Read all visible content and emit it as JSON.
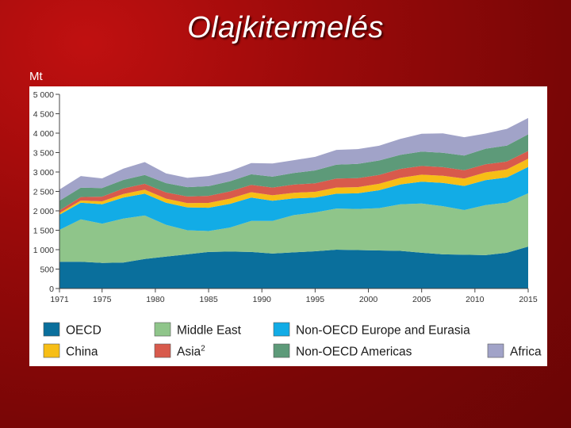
{
  "slide": {
    "title": "Olajkitermelés",
    "unit": "Mt"
  },
  "chart_data": {
    "type": "area",
    "stacked": true,
    "title": "Olajkitermelés",
    "ylabel": "Mt",
    "xlabel": "",
    "ylim": [
      0,
      5000
    ],
    "xlim": [
      1971,
      2015
    ],
    "yticks": [
      0,
      500,
      1000,
      1500,
      2000,
      2500,
      3000,
      3500,
      4000,
      4500,
      5000
    ],
    "ytick_labels": [
      "0",
      "500",
      "1 000",
      "1 500",
      "2 000",
      "2 500",
      "3 000",
      "3 500",
      "4 000",
      "4 500",
      "5 000"
    ],
    "xticks": [
      1971,
      1975,
      1980,
      1985,
      1990,
      1995,
      2000,
      2005,
      2010,
      2015
    ],
    "grid": false,
    "legend_position": "bottom",
    "x": [
      1971,
      1973,
      1975,
      1977,
      1979,
      1981,
      1983,
      1985,
      1987,
      1989,
      1991,
      1993,
      1995,
      1997,
      1999,
      2001,
      2003,
      2005,
      2007,
      2009,
      2011,
      2013,
      2015
    ],
    "series": [
      {
        "name": "OECD",
        "color": "#0a6f9c",
        "values": [
          690,
          690,
          660,
          670,
          760,
          820,
          880,
          940,
          950,
          940,
          900,
          930,
          960,
          1000,
          990,
          980,
          970,
          920,
          880,
          870,
          860,
          920,
          1080
        ]
      },
      {
        "name": "Middle East",
        "color": "#8fc58a",
        "values": [
          820,
          1090,
          1010,
          1130,
          1120,
          820,
          620,
          540,
          620,
          800,
          840,
          960,
          1000,
          1060,
          1060,
          1090,
          1200,
          1270,
          1240,
          1150,
          1290,
          1290,
          1370
        ]
      },
      {
        "name": "Non-OECD Europe and Eurasia",
        "color": "#12ace6",
        "values": [
          390,
          430,
          500,
          540,
          560,
          570,
          590,
          600,
          610,
          600,
          520,
          430,
          380,
          380,
          400,
          460,
          510,
          560,
          600,
          620,
          640,
          650,
          680
        ]
      },
      {
        "name": "China",
        "color": "#f7be16",
        "values": [
          40,
          55,
          75,
          95,
          105,
          105,
          110,
          125,
          135,
          140,
          140,
          145,
          150,
          160,
          160,
          165,
          170,
          180,
          185,
          190,
          200,
          205,
          210
        ]
      },
      {
        "name": "Asia²",
        "color": "#d85a4c",
        "values": [
          70,
          90,
          120,
          140,
          150,
          160,
          170,
          180,
          185,
          190,
          200,
          210,
          220,
          230,
          230,
          230,
          230,
          225,
          220,
          215,
          210,
          205,
          200
        ]
      },
      {
        "name": "Non-OECD Americas",
        "color": "#5d9a79",
        "values": [
          250,
          240,
          220,
          220,
          230,
          240,
          240,
          250,
          260,
          270,
          280,
          300,
          330,
          360,
          370,
          370,
          360,
          370,
          370,
          380,
          400,
          410,
          430
        ]
      },
      {
        "name": "Africa",
        "color": "#a1a3c8",
        "values": [
          290,
          300,
          250,
          290,
          330,
          250,
          240,
          260,
          260,
          290,
          340,
          330,
          350,
          380,
          380,
          380,
          410,
          460,
          500,
          470,
          390,
          430,
          420
        ]
      }
    ]
  },
  "legend": {
    "items": [
      {
        "label": "OECD",
        "color": "#0a6f9c"
      },
      {
        "label": "Middle East",
        "color": "#8fc58a"
      },
      {
        "label": "Non-OECD Europe and Eurasia",
        "color": "#12ace6"
      },
      {
        "label": "China",
        "color": "#f7be16"
      },
      {
        "label": "Asia",
        "sup": "2",
        "color": "#d85a4c"
      },
      {
        "label": "Non-OECD Americas",
        "color": "#5d9a79"
      },
      {
        "label": "Africa",
        "color": "#a1a3c8"
      }
    ]
  }
}
